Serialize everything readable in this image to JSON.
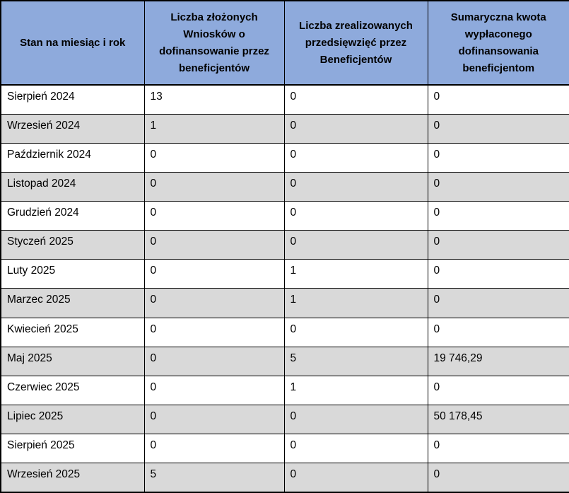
{
  "table": {
    "columns": [
      "Stan na miesiąc i rok",
      "Liczba złożonych Wniosków o dofinansowanie przez beneficjentów",
      "Liczba zrealizowanych przedsięwzięć przez Beneficjentów",
      "Sumaryczna kwota wypłaconego dofinansowania beneficjentom"
    ],
    "rows": [
      {
        "month": "Sierpień 2024",
        "applications": "13",
        "completed": "0",
        "amount": "0"
      },
      {
        "month": "Wrzesień 2024",
        "applications": "1",
        "completed": "0",
        "amount": "0"
      },
      {
        "month": "Październik 2024",
        "applications": "0",
        "completed": "0",
        "amount": "0"
      },
      {
        "month": "Listopad 2024",
        "applications": "0",
        "completed": "0",
        "amount": "0"
      },
      {
        "month": "Grudzień 2024",
        "applications": "0",
        "completed": "0",
        "amount": "0"
      },
      {
        "month": "Styczeń 2025",
        "applications": "0",
        "completed": "0",
        "amount": "0"
      },
      {
        "month": "Luty 2025",
        "applications": "0",
        "completed": "1",
        "amount": "0"
      },
      {
        "month": "Marzec 2025",
        "applications": "0",
        "completed": "1",
        "amount": "0"
      },
      {
        "month": "Kwiecień 2025",
        "applications": "0",
        "completed": "0",
        "amount": "0"
      },
      {
        "month": "Maj 2025",
        "applications": "0",
        "completed": "5",
        "amount": "19 746,29"
      },
      {
        "month": "Czerwiec 2025",
        "applications": "0",
        "completed": "1",
        "amount": "0"
      },
      {
        "month": "Lipiec 2025",
        "applications": "0",
        "completed": "0",
        "amount": "50 178,45"
      },
      {
        "month": "Sierpień 2025",
        "applications": "0",
        "completed": "0",
        "amount": "0"
      },
      {
        "month": "Wrzesień 2025",
        "applications": "5",
        "completed": "0",
        "amount": "0"
      }
    ]
  },
  "colors": {
    "header_bg": "#8EAADC",
    "row_bg": "#FFFFFF",
    "row_alt_bg": "#D9D9D9",
    "border": "#000000",
    "text": "#000000"
  }
}
